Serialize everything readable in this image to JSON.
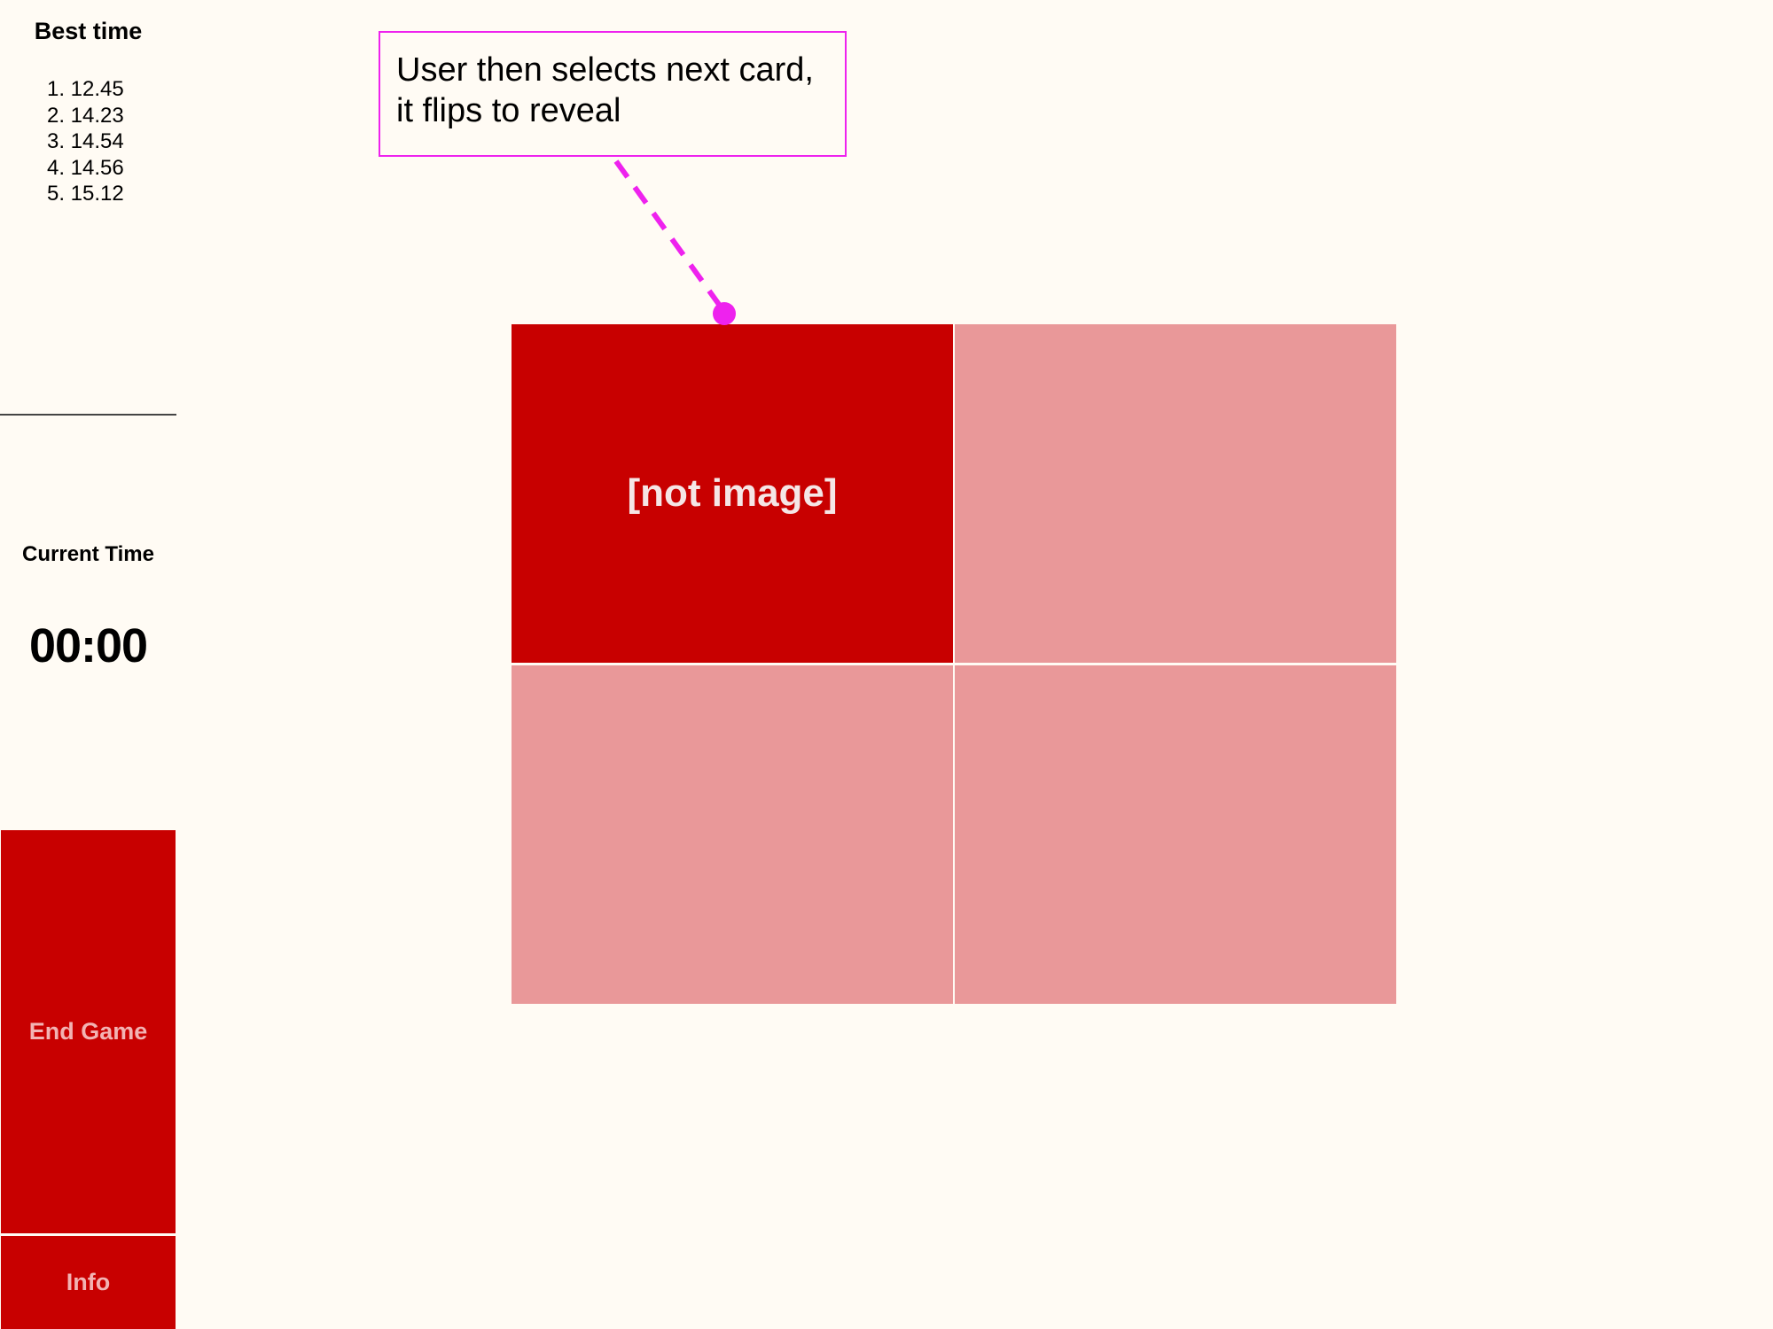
{
  "sidebar": {
    "best_time_title": "Best time",
    "best_times": [
      "1. 12.45",
      "2. 14.23",
      "3. 14.54",
      "4. 14.56",
      "5. 15.12"
    ],
    "current_time_title": "Current Time",
    "current_time_value": "00:00",
    "end_game_label": "End Game",
    "info_label": "Info"
  },
  "board": {
    "cards": [
      {
        "state": "revealed",
        "label": "[not image]"
      },
      {
        "state": "hidden",
        "label": ""
      },
      {
        "state": "hidden",
        "label": ""
      },
      {
        "state": "hidden",
        "label": ""
      }
    ]
  },
  "annotation": {
    "text_line1": "User then selects next card,",
    "text_line2": "it flips to reveal"
  },
  "colors": {
    "background": "#fffbf4",
    "accent_red": "#c80000",
    "card_back": "#e99899",
    "annotation_magenta": "#ee22ee",
    "button_text": "#f2b3b3"
  }
}
